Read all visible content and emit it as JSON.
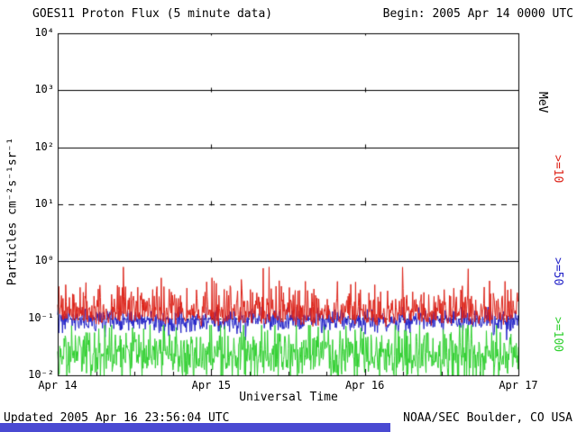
{
  "header": {
    "title": "GOES11 Proton Flux (5 minute data)",
    "begin_label": "Begin: 2005 Apr 14 0000 UTC"
  },
  "footer": {
    "updated": "Updated 2005 Apr 16 23:56:04 UTC",
    "credit": "NOAA/SEC Boulder, CO USA"
  },
  "colors": {
    "frame": "#000000",
    "bottom_strip": "#4a4ad2"
  },
  "chart_data": {
    "type": "line",
    "title": "GOES11 Proton Flux (5 minute data)",
    "xlabel": "Universal Time",
    "ylabel": "Particles cm⁻²s⁻¹sr⁻¹",
    "right_axis_title": "MeV",
    "x_tick_labels": [
      "Apr 14",
      "Apr 15",
      "Apr 16",
      "Apr 17"
    ],
    "y_tick_labels": [
      "10⁴",
      "10³",
      "10²",
      "10¹",
      "10⁰",
      "10⁻¹",
      "10⁻²"
    ],
    "ylim_log10": [
      -2,
      4
    ],
    "x_range_days": 3,
    "samples_per_day": 288,
    "grid": {
      "solid_y_log10": [
        3,
        2,
        0
      ],
      "dashed_y_log10": [
        1
      ],
      "dotted_y_log10": [
        -1
      ],
      "vertical_dashed_x_days": [
        1,
        2
      ]
    },
    "series": [
      {
        "name": ">=10",
        "color": "#dd2218",
        "dist": "half-normal-up",
        "baseline_log10": -1.03,
        "sigma_log10": 0.3,
        "jitter_down_log10": 0.12,
        "clamp_log10": [
          -1.18,
          -0.1
        ],
        "typical_range_log10": [
          -1.15,
          -0.45
        ],
        "seed": 11
      },
      {
        "name": ">=50",
        "color": "#2323c8",
        "dist": "normal",
        "baseline_log10": -1.04,
        "sigma_log10": 0.1,
        "jitter_down_log10": 0,
        "clamp_log10": [
          -1.38,
          -0.8
        ],
        "typical_range_log10": [
          -1.3,
          -0.85
        ],
        "seed": 53
      },
      {
        "name": ">=100",
        "color": "#30d030",
        "dist": "normal",
        "baseline_log10": -1.63,
        "sigma_log10": 0.24,
        "jitter_down_log10": 0,
        "clamp_log10": [
          -2.0,
          -1.12
        ],
        "typical_range_log10": [
          -2.0,
          -1.2
        ],
        "seed": 97
      }
    ]
  }
}
